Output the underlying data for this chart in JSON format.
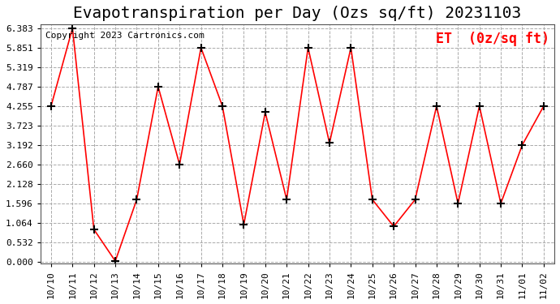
{
  "title": "Evapotranspiration per Day (Ozs sq/ft) 20231103",
  "copyright": "Copyright 2023 Cartronics.com",
  "legend_label": "ET  (0z/sq ft)",
  "dates": [
    "10/10",
    "10/11",
    "10/12",
    "10/13",
    "10/14",
    "10/15",
    "10/16",
    "10/17",
    "10/18",
    "10/19",
    "10/20",
    "10/21",
    "10/22",
    "10/23",
    "10/24",
    "10/25",
    "10/26",
    "10/27",
    "10/28",
    "10/29",
    "10/30",
    "10/31",
    "11/01",
    "11/02"
  ],
  "values": [
    4.255,
    6.383,
    0.887,
    0.021,
    1.702,
    4.787,
    2.66,
    5.851,
    4.255,
    1.021,
    4.087,
    1.702,
    5.851,
    3.245,
    5.851,
    1.702,
    0.968,
    1.702,
    4.255,
    1.596,
    4.255,
    1.596,
    3.192,
    4.255
  ],
  "line_color": "red",
  "marker": "+",
  "marker_color": "black",
  "bg_color": "white",
  "grid_color": "#aaaaaa",
  "yticks": [
    0.0,
    0.532,
    1.064,
    1.596,
    2.128,
    2.66,
    3.192,
    3.723,
    4.255,
    4.787,
    5.319,
    5.851,
    6.383
  ],
  "ylim": [
    0.0,
    6.383
  ],
  "title_fontsize": 14,
  "copyright_fontsize": 8,
  "legend_fontsize": 12,
  "axis_fontsize": 8
}
